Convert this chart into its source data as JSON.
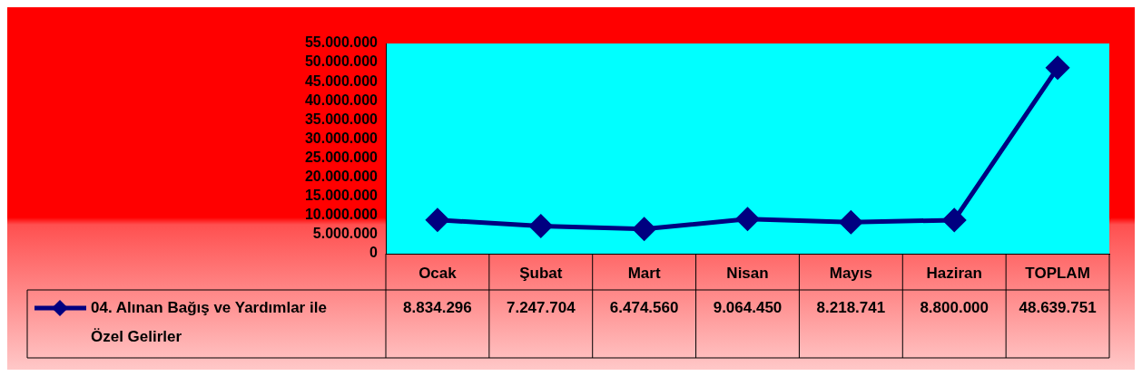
{
  "chart_data": {
    "type": "line",
    "categories": [
      "Ocak",
      "Şubat",
      "Mart",
      "Nisan",
      "Mayıs",
      "Haziran",
      "TOPLAM"
    ],
    "series": [
      {
        "name": "04. Alınan Bağış ve Yardımlar ile Özel Gelirler",
        "color": "#000080",
        "values": [
          8834296,
          7247704,
          6474560,
          9064450,
          8218741,
          8800000,
          48639751
        ],
        "value_labels": [
          "8.834.296",
          "7.247.704",
          "6.474.560",
          "9.064.450",
          "8.218.741",
          "8.800.000",
          "48.639.751"
        ]
      }
    ],
    "ylim": [
      0,
      55000000
    ],
    "yticks": [
      {
        "value": 0,
        "label": "0"
      },
      {
        "value": 5000000,
        "label": "5.000.000"
      },
      {
        "value": 10000000,
        "label": "10.000.000"
      },
      {
        "value": 15000000,
        "label": "15.000.000"
      },
      {
        "value": 20000000,
        "label": "20.000.000"
      },
      {
        "value": 25000000,
        "label": "25.000.000"
      },
      {
        "value": 30000000,
        "label": "30.000.000"
      },
      {
        "value": 35000000,
        "label": "35.000.000"
      },
      {
        "value": 40000000,
        "label": "40.000.000"
      },
      {
        "value": 45000000,
        "label": "45.000.000"
      },
      {
        "value": 50000000,
        "label": "50.000.000"
      },
      {
        "value": 55000000,
        "label": "55.000.000"
      }
    ],
    "grid": false,
    "legend": "bottom left",
    "marker": "diamond",
    "line_style": "solid"
  }
}
